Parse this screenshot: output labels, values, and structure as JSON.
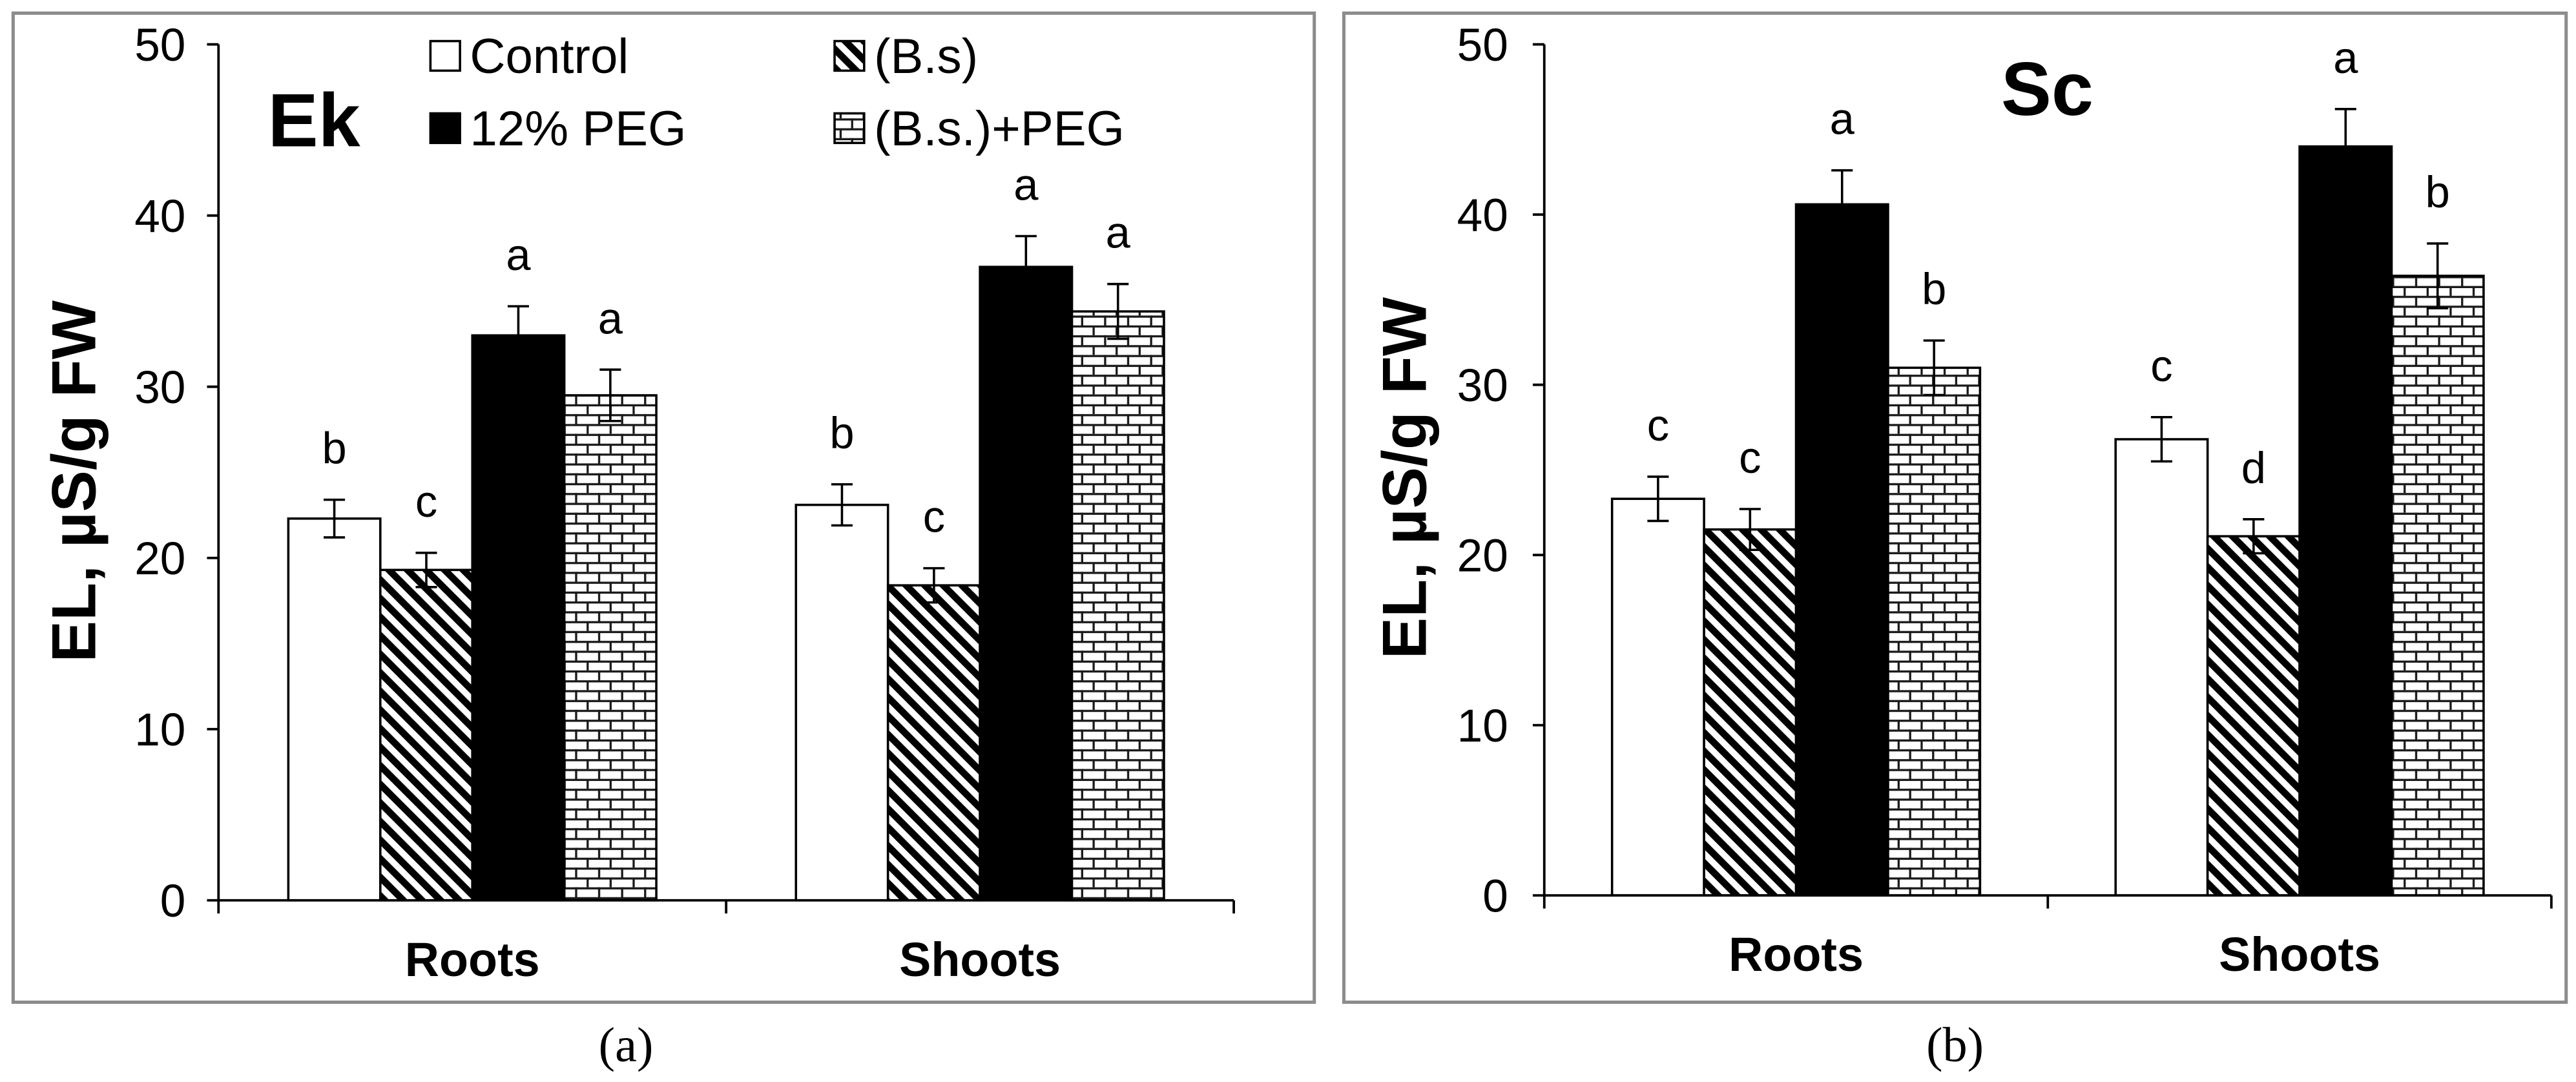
{
  "chart_data": [
    {
      "type": "bar",
      "panel_label": "(a)",
      "title": "Ek",
      "ylabel": "EL, µS/g FW",
      "categories": [
        "Roots",
        "Shoots"
      ],
      "ylim": [
        0,
        50
      ],
      "yticks": [
        0,
        10,
        20,
        30,
        40,
        50
      ],
      "grid": false,
      "legend_position": "top",
      "series": [
        {
          "name": "Control",
          "values": [
            22.3,
            23.1
          ],
          "errors": [
            1.1,
            1.2
          ],
          "letters": [
            "b",
            "b"
          ]
        },
        {
          "name": "(B.s)",
          "values": [
            19.3,
            18.4
          ],
          "errors": [
            1.0,
            1.0
          ],
          "letters": [
            "c",
            "c"
          ]
        },
        {
          "name": "12% PEG",
          "values": [
            33.0,
            37.0
          ],
          "errors": [
            1.7,
            1.8
          ],
          "letters": [
            "a",
            "a"
          ]
        },
        {
          "name": "(B.s.)+PEG",
          "values": [
            29.5,
            34.4
          ],
          "errors": [
            1.5,
            1.6
          ],
          "letters": [
            "a",
            "a"
          ]
        }
      ]
    },
    {
      "type": "bar",
      "panel_label": "(b)",
      "title": "Sc",
      "ylabel": "EL, µS/g FW",
      "categories": [
        "Roots",
        "Shoots"
      ],
      "ylim": [
        0,
        50
      ],
      "yticks": [
        0,
        10,
        20,
        30,
        40,
        50
      ],
      "grid": false,
      "series": [
        {
          "values": [
            23.3,
            26.8
          ],
          "errors": [
            1.3,
            1.3
          ],
          "letters": [
            "c",
            "c"
          ]
        },
        {
          "values": [
            21.5,
            21.1
          ],
          "errors": [
            1.2,
            1.0
          ],
          "letters": [
            "c",
            "d"
          ]
        },
        {
          "values": [
            40.6,
            44.0
          ],
          "errors": [
            2.0,
            2.2
          ],
          "letters": [
            "a",
            "a"
          ]
        },
        {
          "values": [
            31.0,
            36.4
          ],
          "errors": [
            1.6,
            1.9
          ],
          "letters": [
            "b",
            "b"
          ]
        }
      ]
    }
  ]
}
